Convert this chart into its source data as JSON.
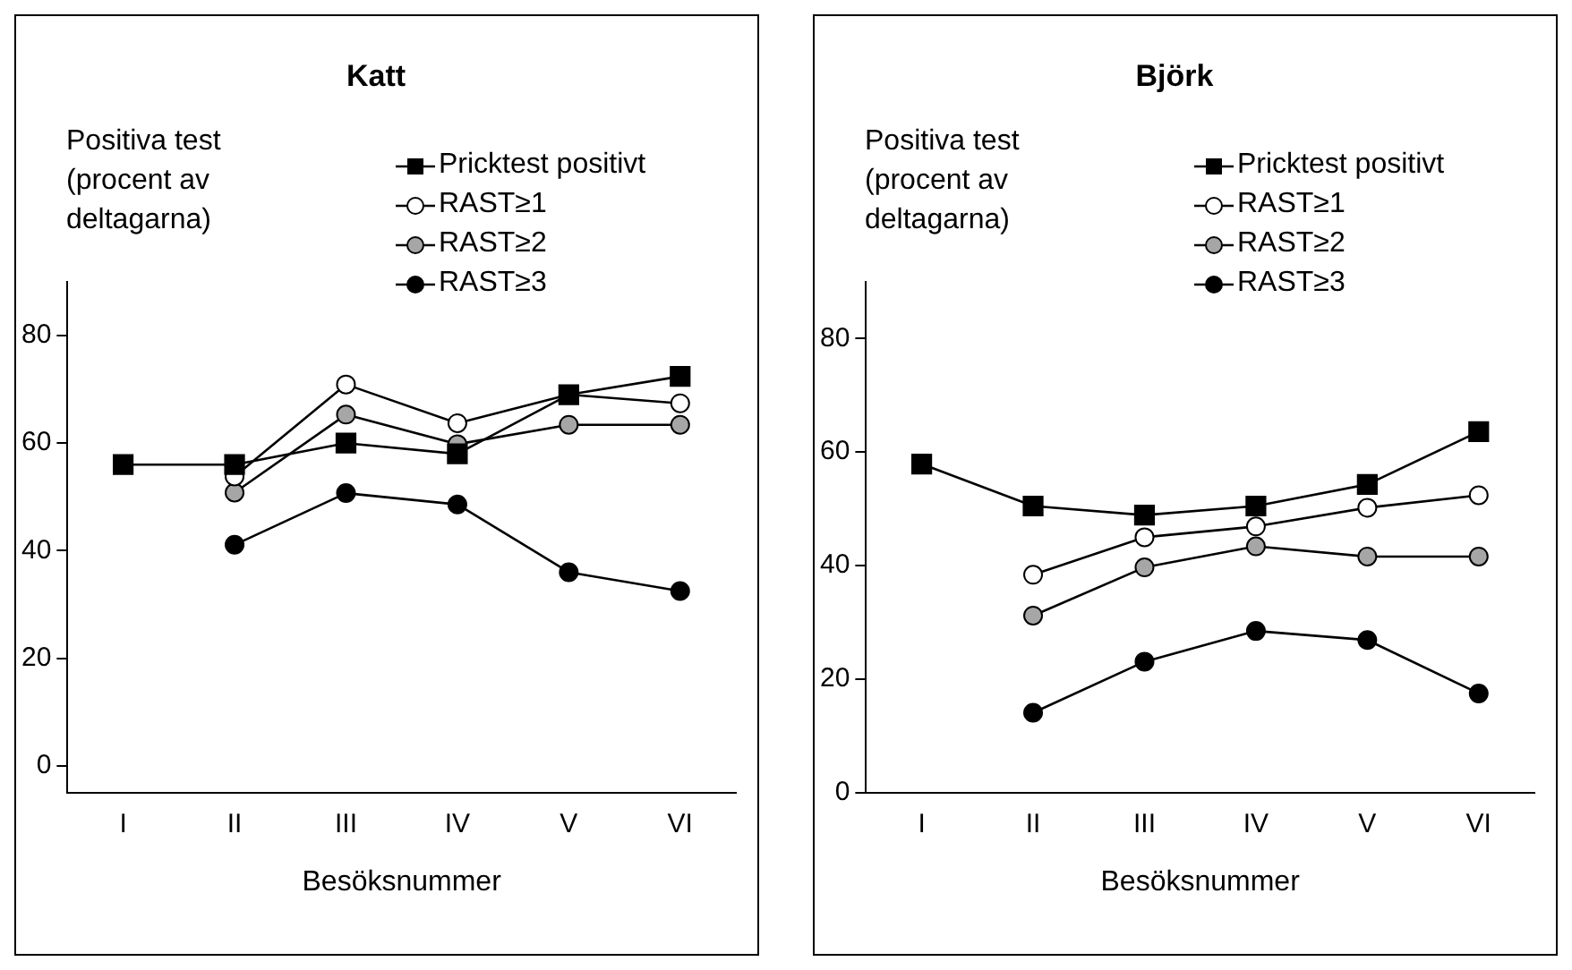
{
  "chart_data": [
    {
      "type": "line",
      "title": "Katt",
      "ylabel": "Positiva test (procent av deltagarna)",
      "xlabel": "Besöksnummer",
      "categories": [
        "I",
        "II",
        "III",
        "IV",
        "V",
        "VI"
      ],
      "ylim": [
        -5,
        90
      ],
      "yticks": [
        0,
        20,
        40,
        60,
        80
      ],
      "legend": "top right",
      "line_style": "solid",
      "series": [
        {
          "name": "Pricktest positivt",
          "color": "#000000",
          "marker": "square",
          "values": [
            56,
            56,
            60,
            58,
            69,
            72.4
          ]
        },
        {
          "name": "RAST≥1",
          "color": "#ffffff",
          "marker": "circle",
          "values": [
            null,
            53.8,
            70.9,
            63.7,
            69,
            67.4
          ]
        },
        {
          "name": "RAST≥2",
          "color": "#a6a6a6",
          "marker": "circle",
          "values": [
            null,
            50.8,
            65.3,
            59.8,
            63.4,
            63.4
          ]
        },
        {
          "name": "RAST≥3",
          "color": "#000000",
          "marker": "circle",
          "values": [
            null,
            41.1,
            50.7,
            48.6,
            36,
            32.5
          ]
        }
      ]
    },
    {
      "type": "line",
      "title": "Björk",
      "ylabel": "Positiva test (procent av deltagarna)",
      "xlabel": "Besöksnummer",
      "categories": [
        "I",
        "II",
        "III",
        "IV",
        "V",
        "VI"
      ],
      "ylim": [
        0,
        90
      ],
      "yticks": [
        0,
        20,
        40,
        60,
        80
      ],
      "legend": "top right",
      "line_style": "solid",
      "series": [
        {
          "name": "Pricktest positivt",
          "color": "#000000",
          "marker": "square",
          "values": [
            57.9,
            50.5,
            48.9,
            50.5,
            54.3,
            63.6
          ]
        },
        {
          "name": "RAST≥1",
          "color": "#ffffff",
          "marker": "circle",
          "values": [
            null,
            38.4,
            45,
            46.9,
            50.2,
            52.4
          ]
        },
        {
          "name": "RAST≥2",
          "color": "#a6a6a6",
          "marker": "circle",
          "values": [
            null,
            31.2,
            39.7,
            43.4,
            41.6,
            41.6
          ]
        },
        {
          "name": "RAST≥3",
          "color": "#000000",
          "marker": "circle",
          "values": [
            null,
            14.1,
            23.1,
            28.5,
            26.9,
            17.5
          ]
        }
      ]
    }
  ]
}
